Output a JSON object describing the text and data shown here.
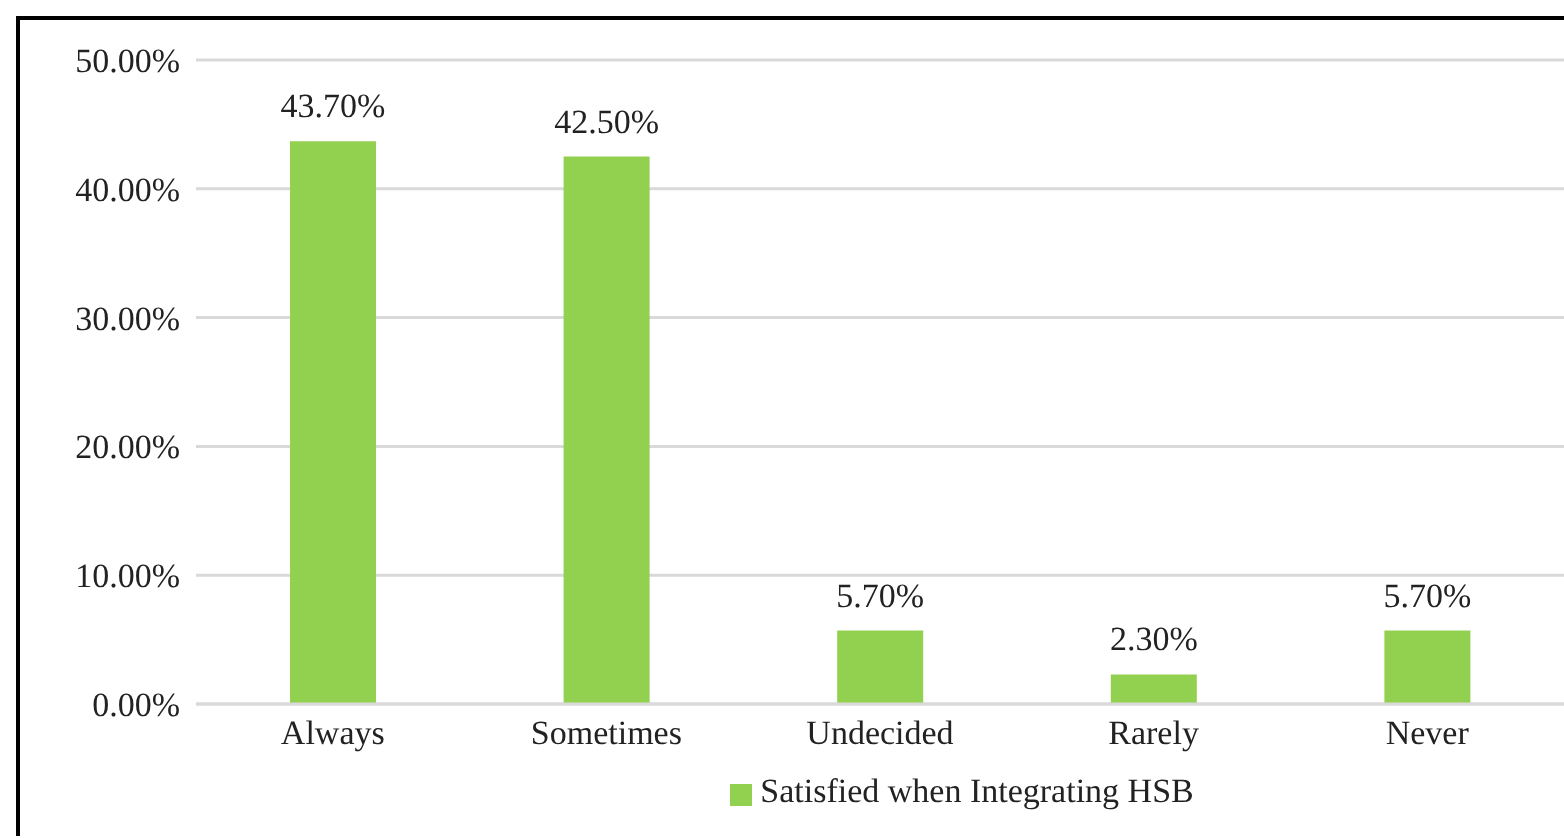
{
  "chart_data": {
    "type": "bar",
    "categories": [
      "Always",
      "Sometimes",
      "Undecided",
      "Rarely",
      "Never"
    ],
    "series": [
      {
        "name": "Satisfied when Integrating HSB",
        "color": "#92d050",
        "values": [
          43.7,
          42.5,
          5.7,
          2.3,
          5.7
        ],
        "value_labels": [
          "43.70%",
          "42.50%",
          "5.70%",
          "2.30%",
          "5.70%"
        ]
      }
    ],
    "ylim": [
      0,
      50
    ],
    "yticks": [
      {
        "value": 0,
        "label": "0.00%"
      },
      {
        "value": 10,
        "label": "10.00%"
      },
      {
        "value": 20,
        "label": "20.00%"
      },
      {
        "value": 30,
        "label": "30.00%"
      },
      {
        "value": 40,
        "label": "40.00%"
      },
      {
        "value": 50,
        "label": "50.00%"
      }
    ],
    "grid": "y",
    "legend": "bottom"
  }
}
